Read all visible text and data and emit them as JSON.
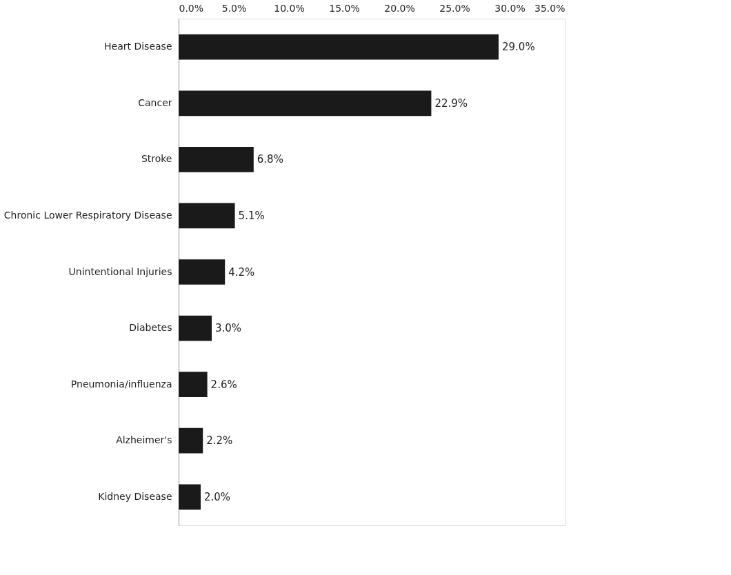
{
  "chart_data": {
    "type": "bar",
    "orientation": "horizontal",
    "categories": [
      "Heart Disease",
      "Cancer",
      "Stroke",
      "Chronic Lower Respiratory Disease",
      "Unintentional Injuries",
      "Diabetes",
      "Pneumonia/influenza",
      "Alzheimer's",
      "Kidney Disease"
    ],
    "values": [
      29.0,
      22.9,
      6.8,
      5.1,
      4.2,
      3.0,
      2.6,
      2.2,
      2.0
    ],
    "value_labels": [
      "29.0%",
      "22.9%",
      "6.8%",
      "5.1%",
      "4.2%",
      "3.0%",
      "2.6%",
      "2.2%",
      "2.0%"
    ],
    "color": "#1a1a1a",
    "xlim": [
      0,
      35
    ],
    "xticks": [
      {
        "value": 0,
        "label": "0.0%"
      },
      {
        "value": 5,
        "label": "5.0%"
      },
      {
        "value": 10,
        "label": "10.0%"
      },
      {
        "value": 15,
        "label": "15.0%"
      },
      {
        "value": 20,
        "label": "20.0%"
      },
      {
        "value": 25,
        "label": "25.0%"
      },
      {
        "value": 30,
        "label": "30.0%"
      },
      {
        "value": 35,
        "label": "35.0%"
      }
    ],
    "grid": false
  }
}
